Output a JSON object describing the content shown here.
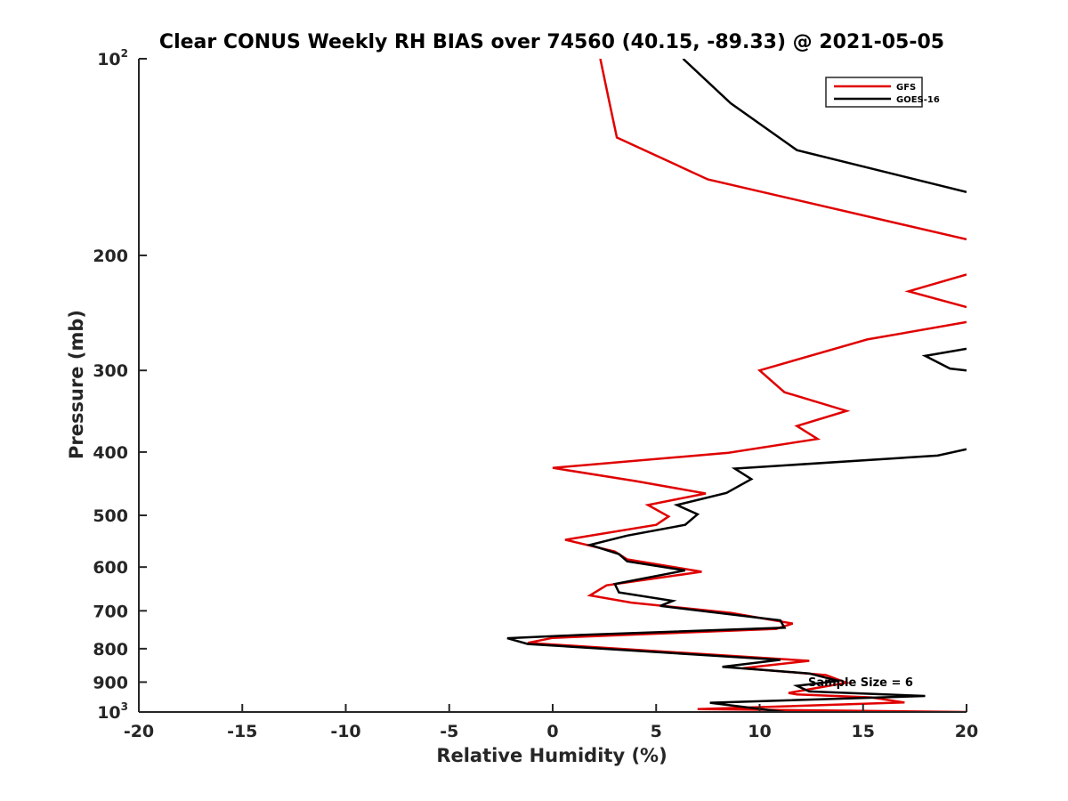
{
  "chart_data": {
    "type": "line",
    "title": "Clear CONUS Weekly RH BIAS over 74560 (40.15, -89.33) @ 2021-05-05",
    "xlabel": "Relative Humidity (%)",
    "ylabel": "Pressure (mb)",
    "xlim": [
      -20,
      20
    ],
    "ylim": [
      100,
      1000
    ],
    "yscale": "log",
    "y_reversed": true,
    "grid": false,
    "legend_position": "top-right",
    "x_ticks": [
      "-20",
      "-15",
      "-10",
      "-5",
      "0",
      "5",
      "10",
      "15",
      "20"
    ],
    "y_ticks": [
      {
        "value": 100,
        "label": "10",
        "sup": "2"
      },
      {
        "value": 200,
        "label": "200",
        "sup": ""
      },
      {
        "value": 300,
        "label": "300",
        "sup": ""
      },
      {
        "value": 400,
        "label": "400",
        "sup": ""
      },
      {
        "value": 500,
        "label": "500",
        "sup": ""
      },
      {
        "value": 600,
        "label": "600",
        "sup": ""
      },
      {
        "value": 700,
        "label": "700",
        "sup": ""
      },
      {
        "value": 800,
        "label": "800",
        "sup": ""
      },
      {
        "value": 900,
        "label": "900",
        "sup": ""
      },
      {
        "value": 1000,
        "label": "10",
        "sup": "3"
      }
    ],
    "annotation": "Sample Size = 6",
    "series": [
      {
        "name": "GFS",
        "color": "#e00000",
        "segments": [
          [
            [
              2.3,
              100
            ],
            [
              2.7,
              115
            ],
            [
              3.1,
              132
            ],
            [
              7.5,
              153
            ],
            [
              20,
              189
            ]
          ],
          [
            [
              20,
              214
            ],
            [
              17.2,
              227
            ],
            [
              20,
              240
            ]
          ],
          [
            [
              20,
              253
            ],
            [
              15.2,
              269
            ],
            [
              10,
              300
            ],
            [
              11.2,
              324
            ],
            [
              14.2,
              346
            ],
            [
              11.8,
              365
            ],
            [
              12.8,
              382
            ],
            [
              8.5,
              401
            ],
            [
              0,
              423
            ],
            [
              4,
              443
            ],
            [
              7.4,
              463
            ],
            [
              4.6,
              482
            ],
            [
              5.6,
              502
            ],
            [
              5,
              517
            ],
            [
              0.6,
              545
            ],
            [
              3,
              568
            ],
            [
              3.6,
              584
            ],
            [
              7.2,
              610
            ],
            [
              2.6,
              640
            ],
            [
              1.8,
              663
            ],
            [
              3.8,
              680
            ],
            [
              8.6,
              705
            ],
            [
              11.6,
              732
            ],
            [
              10.8,
              746
            ],
            [
              0,
              770
            ],
            [
              -1.2,
              784
            ],
            [
              12.4,
              835
            ],
            [
              9.2,
              857
            ],
            [
              13.2,
              878
            ],
            [
              14.2,
              902
            ],
            [
              11.4,
              935
            ],
            [
              11.8,
              940
            ],
            [
              15.4,
              950
            ],
            [
              17,
              967
            ],
            [
              7,
              990
            ],
            [
              20,
              1000
            ]
          ]
        ]
      },
      {
        "name": "GOES-16",
        "color": "#000000",
        "segments": [
          [
            [
              6.3,
              100
            ],
            [
              8.6,
              117
            ],
            [
              11.8,
              138
            ],
            [
              20,
              160
            ]
          ],
          [
            [
              20,
              278
            ],
            [
              18,
              285
            ],
            [
              19.2,
              298
            ],
            [
              20,
              300
            ]
          ],
          [
            [
              20,
              396
            ],
            [
              18.6,
              405
            ],
            [
              8.8,
              424
            ],
            [
              9.6,
              440
            ],
            [
              8.4,
              462
            ],
            [
              6,
              482
            ],
            [
              7,
              498
            ],
            [
              6.4,
              517
            ],
            [
              3.6,
              537
            ],
            [
              1.8,
              555
            ],
            [
              3.2,
              573
            ],
            [
              3.6,
              588
            ],
            [
              6.4,
              607
            ],
            [
              3,
              637
            ],
            [
              3.2,
              656
            ],
            [
              5.8,
              676
            ],
            [
              5.2,
              688
            ],
            [
              11,
              724
            ],
            [
              11.2,
              743
            ],
            [
              1.4,
              762
            ],
            [
              -2.2,
              771
            ],
            [
              -1.2,
              787
            ],
            [
              11,
              832
            ],
            [
              8.2,
              853
            ],
            [
              12.4,
              873
            ],
            [
              13.8,
              896
            ],
            [
              11.8,
              912
            ],
            [
              12.4,
              930
            ],
            [
              18,
              945
            ],
            [
              7.6,
              968
            ],
            [
              11.2,
              1000
            ]
          ]
        ]
      }
    ]
  }
}
